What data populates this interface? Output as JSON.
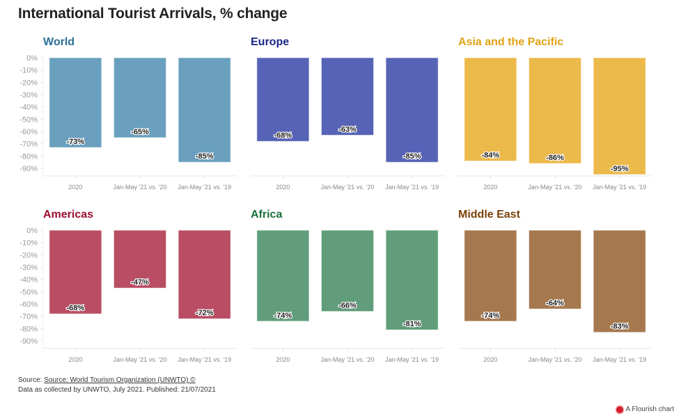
{
  "title": "International Tourist Arrivals, % change",
  "footer": {
    "source_prefix": "Source: ",
    "source_link": "Source: World Tourism Organization (UNWTO) ©",
    "note": "Data as collected by UNWTO, July 2021. Published: 21/07/2021"
  },
  "branding": {
    "label": "A Flourish chart"
  },
  "chart_data": [
    {
      "type": "bar",
      "title": "World",
      "color": "#6aa0be",
      "title_color": "#2b6f96",
      "categories": [
        "2020",
        "Jan-May '21 vs. '20",
        "Jan-May '21 vs. '19"
      ],
      "values": [
        -73,
        -65,
        -85
      ],
      "labels": [
        "-73%",
        "-65%",
        "-85%"
      ],
      "ylim": [
        -95,
        0
      ],
      "yticks": [
        "0%",
        "-10%",
        "-20%",
        "-30%",
        "-40%",
        "-50%",
        "-60%",
        "-70%",
        "-80%",
        "-90%"
      ],
      "show_yaxis": true
    },
    {
      "type": "bar",
      "title": "Europe",
      "color": "#5663b6",
      "title_color": "#1a2788",
      "categories": [
        "2020",
        "Jan-May '21 vs. '20",
        "Jan-May '21 vs. '19"
      ],
      "values": [
        -68,
        -63,
        -85
      ],
      "labels": [
        "-68%",
        "-63%",
        "-85%"
      ],
      "ylim": [
        -95,
        0
      ],
      "show_yaxis": false
    },
    {
      "type": "bar",
      "title": "Asia and the Pacific",
      "color": "#ecba4b",
      "title_color": "#e0a214",
      "categories": [
        "2020",
        "Jan-May '21 vs. '20",
        "Jan-May '21 vs. '19"
      ],
      "values": [
        -84,
        -86,
        -95
      ],
      "labels": [
        "-84%",
        "-86%",
        "-95%"
      ],
      "ylim": [
        -95,
        0
      ],
      "show_yaxis": false
    },
    {
      "type": "bar",
      "title": "Americas",
      "color": "#b94d64",
      "title_color": "#9a0f30",
      "categories": [
        "2020",
        "Jan-May '21 vs. '20",
        "Jan-May '21 vs. '19"
      ],
      "values": [
        -68,
        -47,
        -72
      ],
      "labels": [
        "-68%",
        "-47%",
        "-72%"
      ],
      "ylim": [
        -95,
        0
      ],
      "yticks": [
        "0%",
        "-10%",
        "-20%",
        "-30%",
        "-40%",
        "-50%",
        "-60%",
        "-70%",
        "-80%",
        "-90%"
      ],
      "show_yaxis": true
    },
    {
      "type": "bar",
      "title": "Africa",
      "color": "#619d7a",
      "title_color": "#17703a",
      "categories": [
        "2020",
        "Jan-May '21 vs. '20",
        "Jan-May '21 vs. '19"
      ],
      "values": [
        -74,
        -66,
        -81
      ],
      "labels": [
        "-74%",
        "-66%",
        "-81%"
      ],
      "ylim": [
        -95,
        0
      ],
      "show_yaxis": false
    },
    {
      "type": "bar",
      "title": "Middle East",
      "color": "#a6784e",
      "title_color": "#7a4208",
      "categories": [
        "2020",
        "Jan-May '21 vs. '20",
        "Jan-May '21 vs. '19"
      ],
      "values": [
        -74,
        -64,
        -83
      ],
      "labels": [
        "-74%",
        "-64%",
        "-83%"
      ],
      "ylim": [
        -95,
        0
      ],
      "show_yaxis": false
    }
  ]
}
